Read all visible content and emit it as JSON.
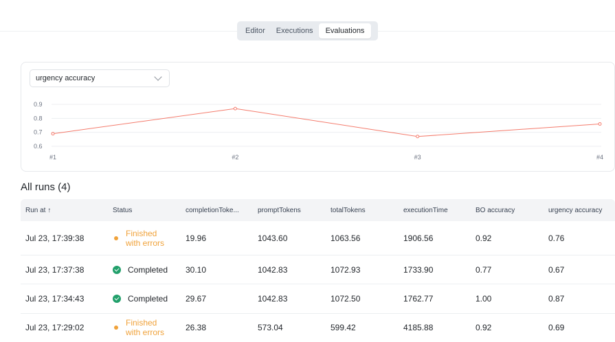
{
  "tabs": [
    {
      "label": "Editor",
      "active": false
    },
    {
      "label": "Executions",
      "active": false
    },
    {
      "label": "Evaluations",
      "active": true
    }
  ],
  "metric_select": {
    "value": "urgency accuracy"
  },
  "chart_data": {
    "type": "line",
    "categories": [
      "#1",
      "#2",
      "#3",
      "#4"
    ],
    "values": [
      0.69,
      0.87,
      0.67,
      0.76
    ],
    "yticks": [
      "0.9",
      "0.8",
      "0.7",
      "0.6"
    ],
    "ylim": [
      0.6,
      0.9
    ],
    "grid": true,
    "color": "#f47a6b"
  },
  "runs": {
    "title": "All runs (4)",
    "columns": [
      "Run at ↑",
      "Status",
      "completionToke...",
      "promptTokens",
      "totalTokens",
      "executionTime",
      "BO accuracy",
      "urgency accuracy"
    ],
    "rows": [
      {
        "run_at": "Jul 23, 17:39:38",
        "status": "Finished with errors",
        "status_kind": "warn",
        "completion": "19.96",
        "prompt": "1043.60",
        "total": "1063.56",
        "exec": "1906.56",
        "bo": "0.92",
        "urgency": "0.76"
      },
      {
        "run_at": "Jul 23, 17:37:38",
        "status": "Completed",
        "status_kind": "ok",
        "completion": "30.10",
        "prompt": "1042.83",
        "total": "1072.93",
        "exec": "1733.90",
        "bo": "0.77",
        "urgency": "0.67"
      },
      {
        "run_at": "Jul 23, 17:34:43",
        "status": "Completed",
        "status_kind": "ok",
        "completion": "29.67",
        "prompt": "1042.83",
        "total": "1072.50",
        "exec": "1762.77",
        "bo": "1.00",
        "urgency": "0.87"
      },
      {
        "run_at": "Jul 23, 17:29:02",
        "status": "Finished with errors",
        "status_kind": "warn",
        "completion": "26.38",
        "prompt": "573.04",
        "total": "599.42",
        "exec": "4185.88",
        "bo": "0.92",
        "urgency": "0.69"
      }
    ]
  },
  "colors": {
    "success": "#22a06b",
    "warning": "#f0a23a",
    "line": "#f47a6b"
  }
}
